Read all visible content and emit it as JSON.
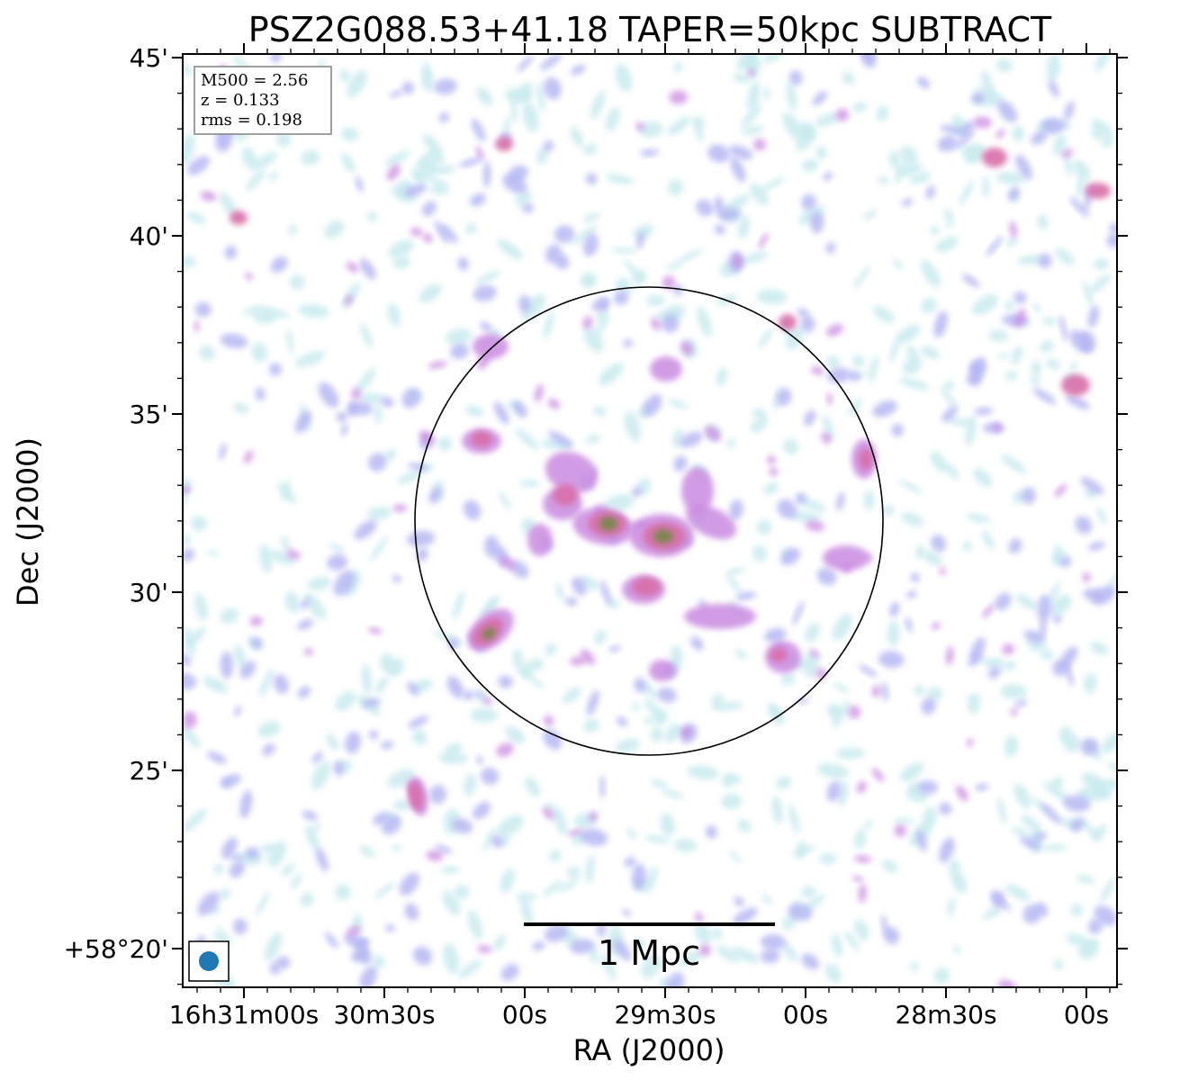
{
  "figure": {
    "title": "PSZ2G088.53+41.18 TAPER=50kpc SUBTRACT",
    "xlabel": "RA (J2000)",
    "ylabel": "Dec (J2000)",
    "x_ticks": [
      "16h31m00s",
      "30m30s",
      "00s",
      "29m30s",
      "00s",
      "28m30s",
      "00s"
    ],
    "y_ticks": [
      "+58°20'",
      "25'",
      "30'",
      "35'",
      "40'",
      "45'"
    ],
    "info": {
      "m500": "M500 = 2.56",
      "z": "z = 0.133",
      "rms": "rms = 0.198"
    },
    "scale_bar_label": "1 Mpc"
  },
  "colors": {
    "faint_cyan": "#c9ebee",
    "lavender": "#b3b4f2",
    "violet": "#c98be0",
    "magenta": "#d86ea8",
    "hot": "#d24f7c",
    "olive": "#5f8d2f",
    "beam": "#1f77b4",
    "frame": "#000000"
  }
}
